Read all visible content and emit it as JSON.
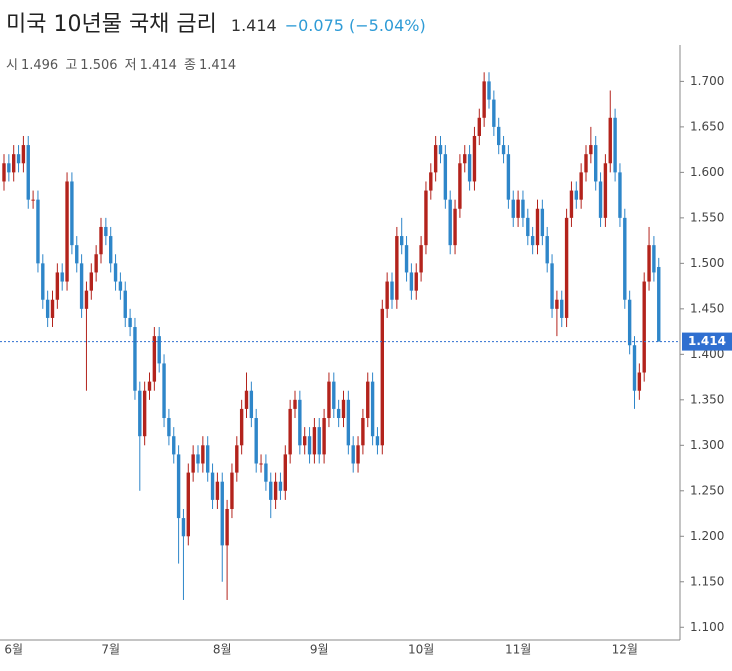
{
  "header": {
    "title": "미국 10년물 국채 금리",
    "last": "1.414",
    "change": "−0.075 (−5.04%)",
    "ohlc": [
      {
        "label": "시",
        "value": "1.496"
      },
      {
        "label": "고",
        "value": "1.506"
      },
      {
        "label": "저",
        "value": "1.414"
      },
      {
        "label": "종",
        "value": "1.414"
      }
    ]
  },
  "chart_data": {
    "type": "candlestick",
    "categories": [
      null,
      null,
      "6월",
      null,
      null,
      null,
      null,
      null,
      null,
      null,
      null,
      null,
      null,
      null,
      null,
      null,
      null,
      null,
      null,
      null,
      null,
      null,
      "7월",
      null,
      null,
      null,
      null,
      null,
      null,
      null,
      null,
      null,
      null,
      null,
      null,
      null,
      null,
      null,
      null,
      null,
      null,
      null,
      null,
      null,
      null,
      "8월",
      null,
      null,
      null,
      null,
      null,
      null,
      null,
      null,
      null,
      null,
      null,
      null,
      null,
      null,
      null,
      null,
      null,
      null,
      null,
      "9월",
      null,
      null,
      null,
      null,
      null,
      null,
      null,
      null,
      null,
      null,
      null,
      null,
      null,
      null,
      null,
      null,
      null,
      null,
      null,
      null,
      "10월",
      null,
      null,
      null,
      null,
      null,
      null,
      null,
      null,
      null,
      null,
      null,
      null,
      null,
      null,
      null,
      null,
      null,
      null,
      null,
      "11월",
      null,
      null,
      null,
      null,
      null,
      null,
      null,
      null,
      null,
      null,
      null,
      null,
      null,
      null,
      null,
      null,
      null,
      null,
      null,
      null,
      null,
      "12월",
      null,
      null,
      null,
      null,
      null,
      null,
      null
    ],
    "open": [
      1.59,
      1.61,
      1.6,
      1.62,
      1.61,
      1.63,
      1.57,
      1.57,
      1.5,
      1.46,
      1.44,
      1.46,
      1.49,
      1.48,
      1.59,
      1.52,
      1.5,
      1.45,
      1.47,
      1.49,
      1.51,
      1.54,
      1.53,
      1.5,
      1.48,
      1.47,
      1.44,
      1.43,
      1.36,
      1.31,
      1.36,
      1.37,
      1.42,
      1.39,
      1.33,
      1.31,
      1.29,
      1.22,
      1.2,
      1.27,
      1.29,
      1.28,
      1.3,
      1.27,
      1.24,
      1.26,
      1.19,
      1.23,
      1.27,
      1.3,
      1.34,
      1.36,
      1.33,
      1.28,
      1.28,
      1.26,
      1.24,
      1.26,
      1.25,
      1.29,
      1.34,
      1.35,
      1.3,
      1.31,
      1.29,
      1.32,
      1.29,
      1.33,
      1.37,
      1.34,
      1.33,
      1.35,
      1.3,
      1.28,
      1.3,
      1.33,
      1.37,
      1.31,
      1.3,
      1.45,
      1.48,
      1.46,
      1.53,
      1.52,
      1.49,
      1.47,
      1.49,
      1.52,
      1.58,
      1.6,
      1.63,
      1.62,
      1.57,
      1.52,
      1.56,
      1.61,
      1.62,
      1.59,
      1.64,
      1.66,
      1.7,
      1.68,
      1.65,
      1.63,
      1.62,
      1.57,
      1.55,
      1.57,
      1.55,
      1.53,
      1.52,
      1.56,
      1.53,
      1.5,
      1.45,
      1.46,
      1.44,
      1.55,
      1.58,
      1.57,
      1.6,
      1.62,
      1.63,
      1.59,
      1.55,
      1.61,
      1.66,
      1.6,
      1.55,
      1.46,
      1.41,
      1.36,
      1.38,
      1.48,
      1.52,
      1.496
    ],
    "high": [
      1.62,
      1.62,
      1.63,
      1.63,
      1.64,
      1.64,
      1.58,
      1.58,
      1.51,
      1.47,
      1.47,
      1.5,
      1.5,
      1.6,
      1.6,
      1.53,
      1.51,
      1.48,
      1.5,
      1.52,
      1.55,
      1.55,
      1.54,
      1.51,
      1.49,
      1.48,
      1.45,
      1.44,
      1.37,
      1.37,
      1.38,
      1.43,
      1.43,
      1.4,
      1.34,
      1.32,
      1.3,
      1.23,
      1.28,
      1.3,
      1.3,
      1.31,
      1.31,
      1.28,
      1.27,
      1.27,
      1.24,
      1.28,
      1.31,
      1.35,
      1.38,
      1.37,
      1.34,
      1.29,
      1.29,
      1.27,
      1.27,
      1.27,
      1.3,
      1.35,
      1.36,
      1.36,
      1.32,
      1.32,
      1.33,
      1.33,
      1.34,
      1.38,
      1.38,
      1.35,
      1.36,
      1.36,
      1.31,
      1.31,
      1.34,
      1.38,
      1.38,
      1.32,
      1.46,
      1.49,
      1.49,
      1.54,
      1.55,
      1.53,
      1.5,
      1.5,
      1.53,
      1.59,
      1.61,
      1.64,
      1.64,
      1.63,
      1.58,
      1.57,
      1.62,
      1.63,
      1.63,
      1.65,
      1.67,
      1.71,
      1.71,
      1.69,
      1.66,
      1.64,
      1.63,
      1.58,
      1.58,
      1.58,
      1.56,
      1.54,
      1.57,
      1.57,
      1.54,
      1.51,
      1.47,
      1.47,
      1.56,
      1.59,
      1.59,
      1.61,
      1.63,
      1.65,
      1.64,
      1.6,
      1.62,
      1.69,
      1.67,
      1.61,
      1.56,
      1.47,
      1.42,
      1.39,
      1.49,
      1.54,
      1.53,
      1.506
    ],
    "low": [
      1.58,
      1.59,
      1.59,
      1.6,
      1.6,
      1.56,
      1.56,
      1.49,
      1.45,
      1.43,
      1.43,
      1.45,
      1.47,
      1.47,
      1.51,
      1.49,
      1.44,
      1.36,
      1.46,
      1.48,
      1.5,
      1.52,
      1.49,
      1.47,
      1.46,
      1.43,
      1.42,
      1.35,
      1.25,
      1.3,
      1.35,
      1.36,
      1.38,
      1.32,
      1.3,
      1.28,
      1.17,
      1.13,
      1.19,
      1.26,
      1.27,
      1.27,
      1.26,
      1.23,
      1.23,
      1.15,
      1.13,
      1.22,
      1.26,
      1.29,
      1.33,
      1.32,
      1.27,
      1.27,
      1.25,
      1.22,
      1.23,
      1.24,
      1.24,
      1.28,
      1.33,
      1.29,
      1.29,
      1.28,
      1.28,
      1.28,
      1.28,
      1.32,
      1.33,
      1.32,
      1.32,
      1.29,
      1.27,
      1.27,
      1.29,
      1.32,
      1.3,
      1.29,
      1.29,
      1.44,
      1.45,
      1.45,
      1.51,
      1.48,
      1.46,
      1.46,
      1.48,
      1.51,
      1.57,
      1.59,
      1.61,
      1.56,
      1.51,
      1.51,
      1.55,
      1.6,
      1.58,
      1.58,
      1.63,
      1.65,
      1.67,
      1.64,
      1.62,
      1.61,
      1.56,
      1.54,
      1.54,
      1.54,
      1.52,
      1.51,
      1.51,
      1.52,
      1.49,
      1.44,
      1.42,
      1.43,
      1.43,
      1.54,
      1.56,
      1.56,
      1.59,
      1.61,
      1.58,
      1.54,
      1.54,
      1.6,
      1.59,
      1.54,
      1.45,
      1.4,
      1.34,
      1.35,
      1.37,
      1.47,
      1.48,
      1.414
    ],
    "close": [
      1.61,
      1.6,
      1.62,
      1.61,
      1.63,
      1.57,
      1.57,
      1.5,
      1.46,
      1.44,
      1.46,
      1.49,
      1.48,
      1.59,
      1.52,
      1.5,
      1.45,
      1.47,
      1.49,
      1.51,
      1.54,
      1.53,
      1.5,
      1.48,
      1.47,
      1.44,
      1.43,
      1.36,
      1.31,
      1.36,
      1.37,
      1.42,
      1.39,
      1.33,
      1.31,
      1.29,
      1.22,
      1.2,
      1.27,
      1.29,
      1.28,
      1.3,
      1.27,
      1.24,
      1.26,
      1.19,
      1.23,
      1.27,
      1.3,
      1.34,
      1.36,
      1.33,
      1.28,
      1.28,
      1.26,
      1.24,
      1.26,
      1.25,
      1.29,
      1.34,
      1.35,
      1.3,
      1.31,
      1.29,
      1.32,
      1.29,
      1.33,
      1.37,
      1.34,
      1.33,
      1.35,
      1.3,
      1.28,
      1.3,
      1.33,
      1.37,
      1.31,
      1.3,
      1.45,
      1.48,
      1.46,
      1.53,
      1.52,
      1.49,
      1.47,
      1.49,
      1.52,
      1.58,
      1.6,
      1.63,
      1.62,
      1.57,
      1.52,
      1.56,
      1.61,
      1.62,
      1.59,
      1.64,
      1.66,
      1.7,
      1.68,
      1.65,
      1.63,
      1.62,
      1.57,
      1.55,
      1.57,
      1.55,
      1.53,
      1.52,
      1.56,
      1.53,
      1.5,
      1.45,
      1.46,
      1.44,
      1.55,
      1.58,
      1.57,
      1.6,
      1.62,
      1.63,
      1.59,
      1.55,
      1.61,
      1.66,
      1.6,
      1.55,
      1.46,
      1.41,
      1.36,
      1.38,
      1.48,
      1.52,
      1.49,
      1.414
    ],
    "up_color": "#b3231c",
    "down_color": "#2e86c9",
    "last_price": 1.414,
    "last_price_color": "#2f6fd0",
    "ylim": [
      1.086,
      1.74
    ],
    "yticks": [
      {
        "value": 1.1,
        "label": "1.100"
      },
      {
        "value": 1.15,
        "label": "1.150"
      },
      {
        "value": 1.2,
        "label": "1.200"
      },
      {
        "value": 1.25,
        "label": "1.250"
      },
      {
        "value": 1.3,
        "label": "1.300"
      },
      {
        "value": 1.35,
        "label": "1.350"
      },
      {
        "value": 1.4,
        "label": "1.400"
      },
      {
        "value": 1.45,
        "label": "1.450"
      },
      {
        "value": 1.5,
        "label": "1.500"
      },
      {
        "value": 1.55,
        "label": "1.550"
      },
      {
        "value": 1.6,
        "label": "1.600"
      },
      {
        "value": 1.65,
        "label": "1.650"
      },
      {
        "value": 1.7,
        "label": "1.700"
      }
    ],
    "grid": false
  }
}
